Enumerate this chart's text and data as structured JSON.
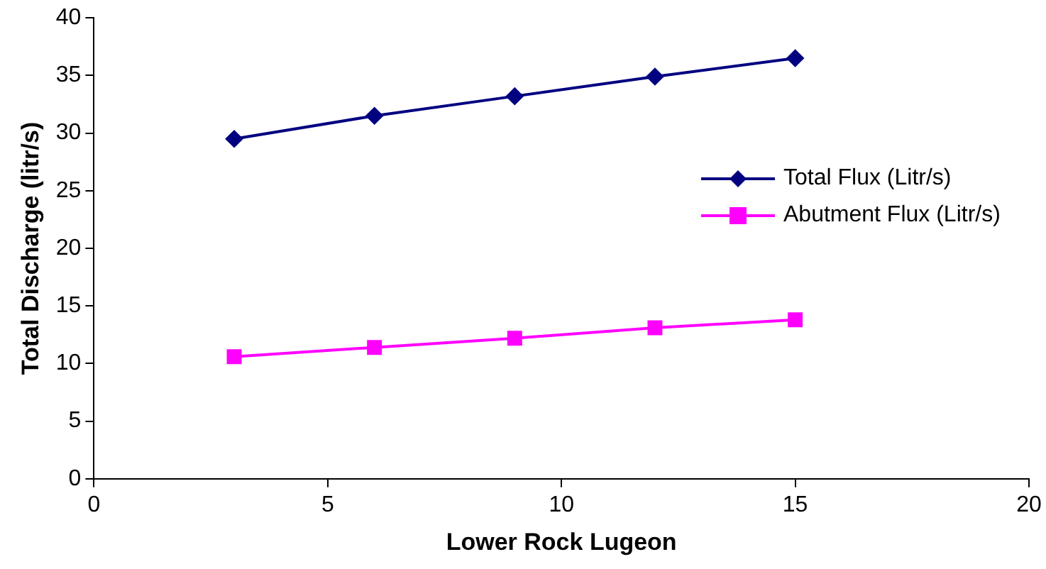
{
  "chart_data": {
    "type": "line",
    "xlabel": "Lower Rock Lugeon",
    "ylabel": "Total Discharge (litr/s)",
    "x": [
      3,
      6,
      9,
      12,
      15
    ],
    "series": [
      {
        "name": "Total Flux (Litr/s)",
        "color": "#000080",
        "marker": "diamond",
        "values": [
          29.5,
          31.5,
          33.2,
          34.9,
          36.5
        ]
      },
      {
        "name": "Abutment Flux (Litr/s)",
        "color": "#ff00ff",
        "marker": "square",
        "values": [
          10.6,
          11.4,
          12.2,
          13.1,
          13.8
        ]
      }
    ],
    "xlim": [
      0,
      20
    ],
    "xticks": [
      0,
      5,
      10,
      15,
      20
    ],
    "ylim": [
      0,
      40
    ],
    "yticks": [
      0,
      5,
      10,
      15,
      20,
      25,
      30,
      35,
      40
    ],
    "grid": false,
    "legend": "right",
    "line_style": "solid"
  }
}
